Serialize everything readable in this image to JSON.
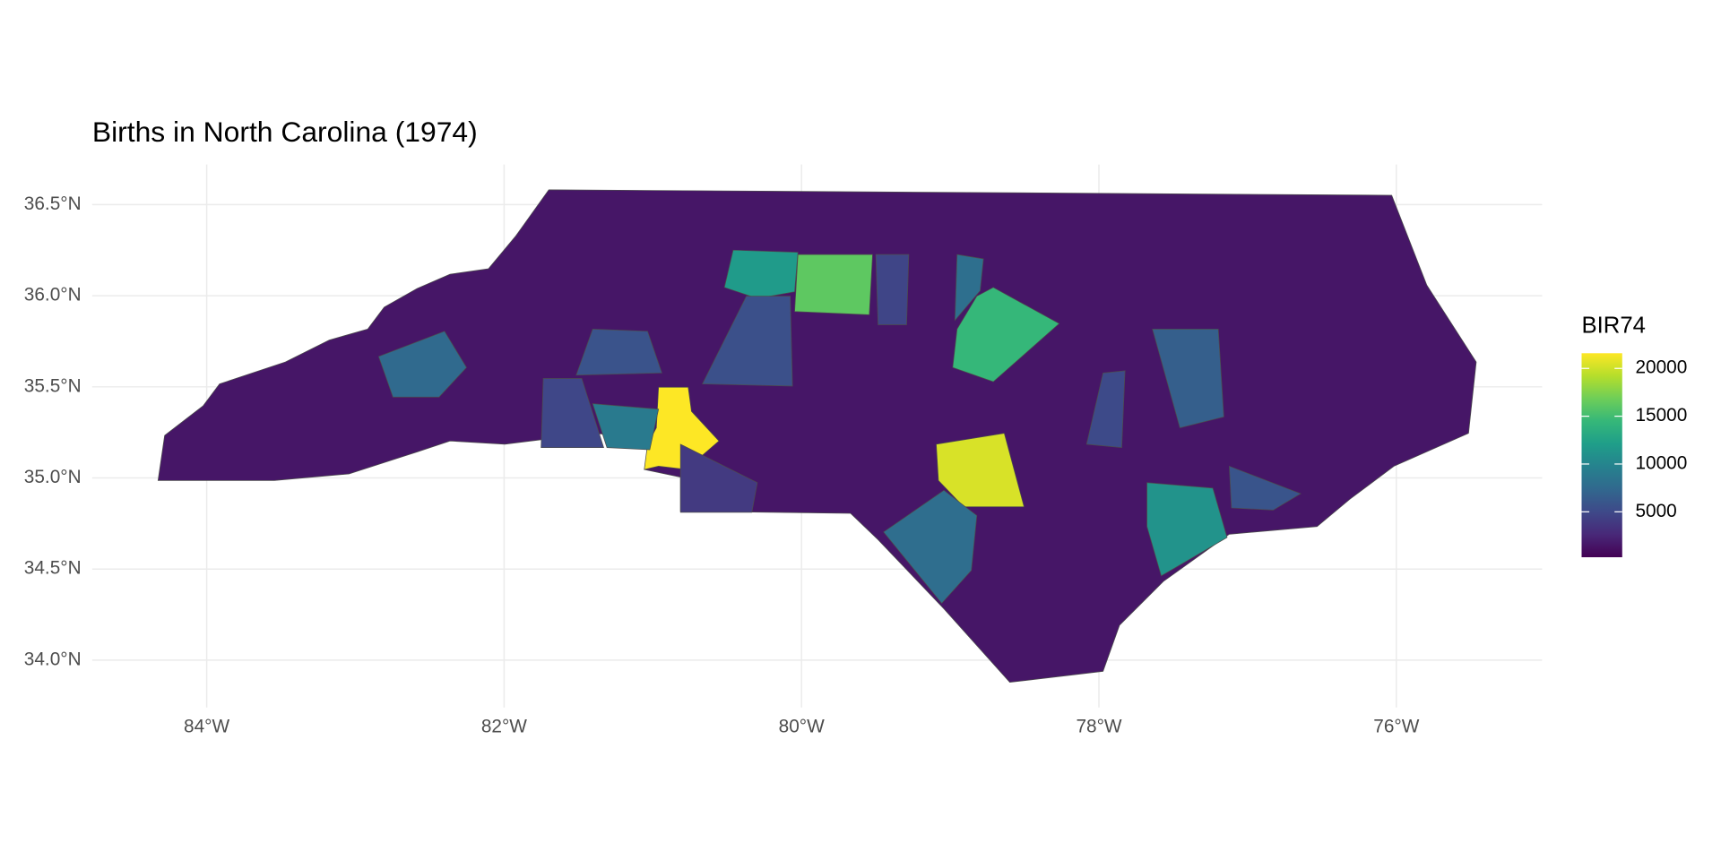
{
  "chart_data": {
    "type": "choropleth",
    "title": "Births in North Carolina (1974)",
    "legend_title": "BIR74",
    "xlim": [
      -84.77,
      -75.02
    ],
    "ylim": [
      33.74,
      36.72
    ],
    "xticks": [
      {
        "value": -84,
        "label": "84°W"
      },
      {
        "value": -82,
        "label": "82°W"
      },
      {
        "value": -80,
        "label": "80°W"
      },
      {
        "value": -78,
        "label": "78°W"
      },
      {
        "value": -76,
        "label": "76°W"
      }
    ],
    "yticks": [
      {
        "value": 34.0,
        "label": "34.0°N"
      },
      {
        "value": 34.5,
        "label": "34.5°N"
      },
      {
        "value": 35.0,
        "label": "35.0°N"
      },
      {
        "value": 35.5,
        "label": "35.5°N"
      },
      {
        "value": 36.0,
        "label": "36.0°N"
      },
      {
        "value": 36.5,
        "label": "36.5°N"
      }
    ],
    "grid": true,
    "values": [
      1500,
      21588,
      14484,
      16184,
      11858,
      20366,
      11158,
      7515,
      9014,
      7889,
      7970,
      5094,
      5509,
      4866,
      5754,
      3915,
      5868,
      4672,
      6638
    ],
    "fill_lim": [
      248,
      21588
    ],
    "legend_ticks": [
      5000,
      10000,
      15000,
      20000
    ],
    "colors": [
      "#440154",
      "#482878",
      "#3e4989",
      "#31688e",
      "#26828e",
      "#1f9e89",
      "#35b779",
      "#6ece58",
      "#b5de2b",
      "#fde725"
    ],
    "border_color": "#4d4d4d"
  }
}
